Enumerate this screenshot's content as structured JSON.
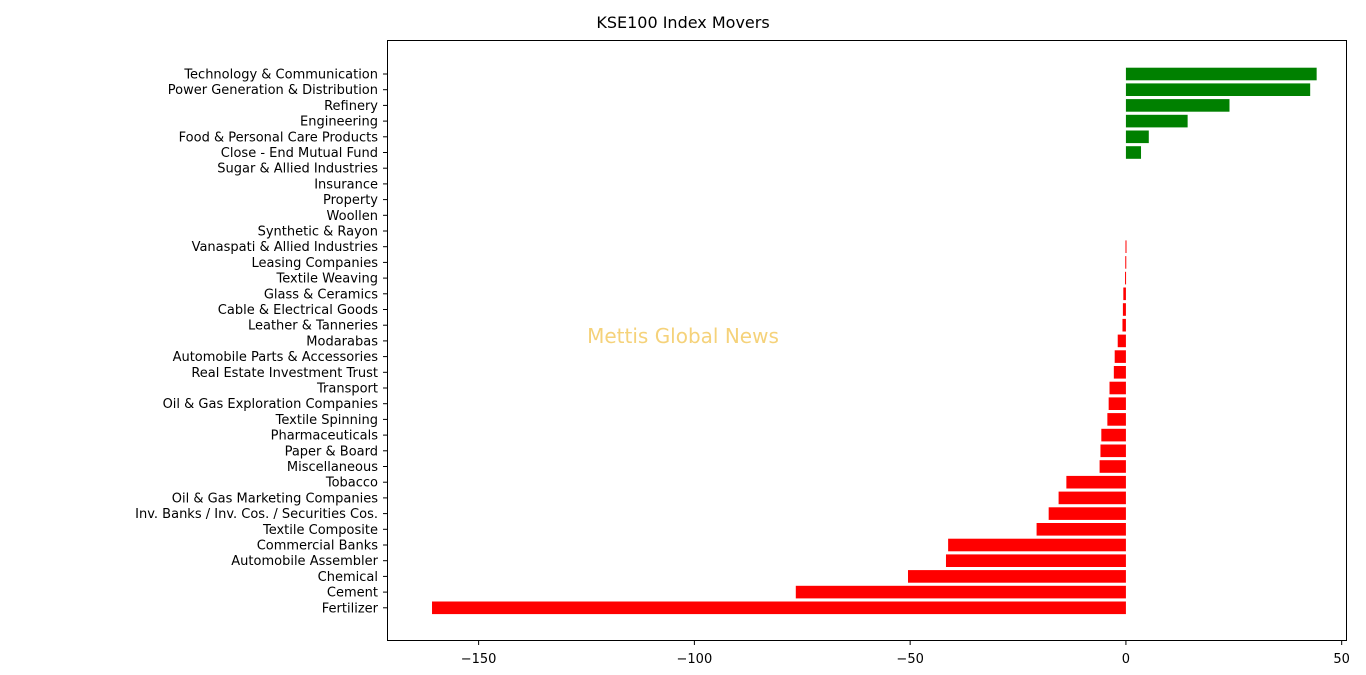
{
  "chart_data": {
    "type": "bar",
    "orientation": "horizontal",
    "title": "KSE100 Index Movers",
    "xlabel": "",
    "ylabel": "",
    "watermark": "Mettis Global News",
    "xlim": [
      -171,
      51
    ],
    "xticks": [
      -150,
      -100,
      -50,
      0,
      50
    ],
    "xtick_labels": [
      "−150",
      "−100",
      "−50",
      "0",
      "50"
    ],
    "positive_color": "#008000",
    "negative_color": "#ff0000",
    "grid": false,
    "categories": [
      "Technology & Communication",
      "Power Generation & Distribution",
      "Refinery",
      "Engineering",
      "Food & Personal Care Products",
      "Close - End Mutual Fund",
      "Sugar & Allied Industries",
      "Insurance",
      "Property",
      "Woollen",
      "Synthetic & Rayon",
      "Vanaspati & Allied Industries",
      "Leasing Companies",
      "Textile Weaving",
      "Glass & Ceramics",
      "Cable & Electrical Goods",
      "Leather & Tanneries",
      "Modarabas",
      "Automobile Parts & Accessories",
      "Real Estate Investment Trust",
      "Transport",
      "Oil & Gas Exploration Companies",
      "Textile Spinning",
      "Pharmaceuticals",
      "Paper & Board",
      "Miscellaneous",
      "Tobacco",
      "Oil & Gas Marketing Companies",
      "Inv. Banks / Inv. Cos. / Securities Cos.",
      "Textile Composite",
      "Commercial Banks",
      "Automobile Assembler",
      "Chemical",
      "Cement",
      "Fertilizer"
    ],
    "values": [
      44.2,
      42.7,
      24.0,
      14.3,
      5.3,
      3.5,
      0,
      0,
      0,
      0,
      0,
      -0.1,
      -0.15,
      -0.2,
      -0.6,
      -0.7,
      -0.8,
      -1.9,
      -2.6,
      -2.8,
      -3.8,
      -4.0,
      -4.3,
      -5.7,
      -5.9,
      -6.1,
      -13.8,
      -15.6,
      -17.9,
      -20.7,
      -41.2,
      -41.7,
      -50.5,
      -76.5,
      -160.8
    ]
  }
}
